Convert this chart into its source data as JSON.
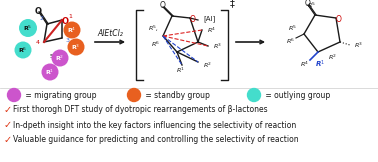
{
  "bg_color": "#ffffff",
  "pink_color": "#cc55cc",
  "orange_color": "#e86020",
  "cyan_color": "#44ddcc",
  "black": "#1a1a1a",
  "red_dash": "#dd2222",
  "blue_dash": "#2244cc",
  "blue_bond": "#2244cc",
  "check_color": "#dd3311",
  "legend_items": [
    {
      "color": "#cc55cc",
      "label": " = migrating group"
    },
    {
      "color": "#e86020",
      "label": " = standby group"
    },
    {
      "color": "#44ddcc",
      "label": " = outlying group"
    }
  ],
  "bullet_lines": [
    "First thorogh DFT study of dyotropic rearrangements of β-lactones",
    "In-dpeth insight into the key factors influencing the selectivity of reaction",
    "Valuable guidance for predicting and controlling the selectivity of reaction"
  ],
  "alEtCl2_label": "AlEtCl₂",
  "dagger": "‡"
}
